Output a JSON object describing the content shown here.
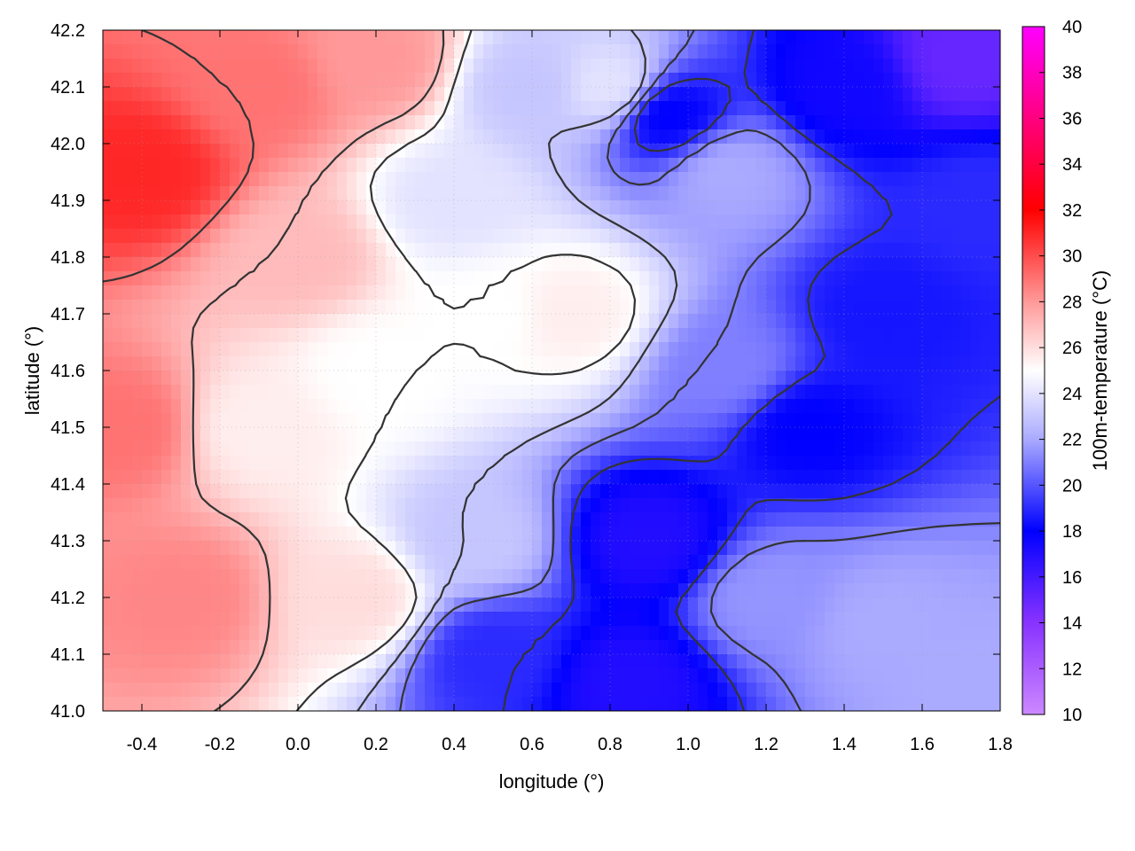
{
  "chart_data": {
    "type": "heatmap",
    "title": "",
    "xlabel": "longitude (°)",
    "ylabel": "latitude (°)",
    "colorbar_label": "100m-temperature (°C)",
    "xlim": [
      -0.5,
      1.8
    ],
    "ylim": [
      41.0,
      42.2
    ],
    "x_ticks": [
      "-0.4",
      "-0.2",
      "0.0",
      "0.2",
      "0.4",
      "0.6",
      "0.8",
      "1.0",
      "1.2",
      "1.4",
      "1.6",
      "1.8"
    ],
    "x_tick_values": [
      -0.4,
      -0.2,
      0.0,
      0.2,
      0.4,
      0.6,
      0.8,
      1.0,
      1.2,
      1.4,
      1.6,
      1.8
    ],
    "y_ticks": [
      "41.0",
      "41.1",
      "41.2",
      "41.3",
      "41.4",
      "41.5",
      "41.6",
      "41.7",
      "41.8",
      "41.9",
      "42.0",
      "42.1",
      "42.2"
    ],
    "y_tick_values": [
      41.0,
      41.1,
      41.2,
      41.3,
      41.4,
      41.5,
      41.6,
      41.7,
      41.8,
      41.9,
      42.0,
      42.1,
      42.2
    ],
    "colorbar": {
      "range": [
        10,
        40
      ],
      "ticks": [
        "10",
        "12",
        "14",
        "16",
        "18",
        "20",
        "22",
        "24",
        "26",
        "28",
        "30",
        "32",
        "34",
        "36",
        "38",
        "40"
      ],
      "tick_values": [
        10,
        12,
        14,
        16,
        18,
        20,
        22,
        24,
        26,
        28,
        30,
        32,
        34,
        36,
        38,
        40
      ],
      "colors": [
        {
          "value": 10,
          "color": "#cc88ff"
        },
        {
          "value": 14,
          "color": "#8833ff"
        },
        {
          "value": 18,
          "color": "#0000ff"
        },
        {
          "value": 22,
          "color": "#aaaaff"
        },
        {
          "value": 25,
          "color": "#ffffff"
        },
        {
          "value": 28,
          "color": "#ff9999"
        },
        {
          "value": 32,
          "color": "#ff0000"
        },
        {
          "value": 40,
          "color": "#ff00ff"
        }
      ]
    },
    "grid": true,
    "contours": true,
    "temperature_field_estimates": [
      {
        "lon": -0.4,
        "lat": 41.95,
        "temp": 31
      },
      {
        "lon": -0.45,
        "lat": 41.5,
        "temp": 29
      },
      {
        "lon": -0.3,
        "lat": 41.2,
        "temp": 28.5
      },
      {
        "lon": -0.1,
        "lat": 42.1,
        "temp": 29
      },
      {
        "lon": 0.2,
        "lat": 42.15,
        "temp": 28
      },
      {
        "lon": 0.0,
        "lat": 41.8,
        "temp": 27
      },
      {
        "lon": -0.1,
        "lat": 41.5,
        "temp": 25.5
      },
      {
        "lon": 0.2,
        "lat": 41.6,
        "temp": 25
      },
      {
        "lon": 0.15,
        "lat": 41.2,
        "temp": 26
      },
      {
        "lon": 0.4,
        "lat": 41.9,
        "temp": 24
      },
      {
        "lon": 0.5,
        "lat": 41.7,
        "temp": 25
      },
      {
        "lon": 0.7,
        "lat": 41.7,
        "temp": 25.5
      },
      {
        "lon": 0.6,
        "lat": 42.1,
        "temp": 23
      },
      {
        "lon": 0.8,
        "lat": 42.1,
        "temp": 24
      },
      {
        "lon": 0.95,
        "lat": 42.05,
        "temp": 18
      },
      {
        "lon": 0.45,
        "lat": 41.3,
        "temp": 23
      },
      {
        "lon": 0.5,
        "lat": 41.1,
        "temp": 19
      },
      {
        "lon": 0.9,
        "lat": 41.3,
        "temp": 17
      },
      {
        "lon": 0.85,
        "lat": 41.05,
        "temp": 17
      },
      {
        "lon": 1.1,
        "lat": 41.6,
        "temp": 21
      },
      {
        "lon": 1.3,
        "lat": 41.5,
        "temp": 18
      },
      {
        "lon": 1.5,
        "lat": 41.7,
        "temp": 18.5
      },
      {
        "lon": 1.4,
        "lat": 42.1,
        "temp": 17.5
      },
      {
        "lon": 1.7,
        "lat": 42.15,
        "temp": 15
      },
      {
        "lon": 1.75,
        "lat": 41.9,
        "temp": 19
      },
      {
        "lon": 1.5,
        "lat": 41.15,
        "temp": 22
      },
      {
        "lon": 1.7,
        "lat": 41.05,
        "temp": 22
      },
      {
        "lon": 1.2,
        "lat": 41.2,
        "temp": 21.5
      },
      {
        "lon": 1.1,
        "lat": 41.95,
        "temp": 22
      }
    ]
  }
}
